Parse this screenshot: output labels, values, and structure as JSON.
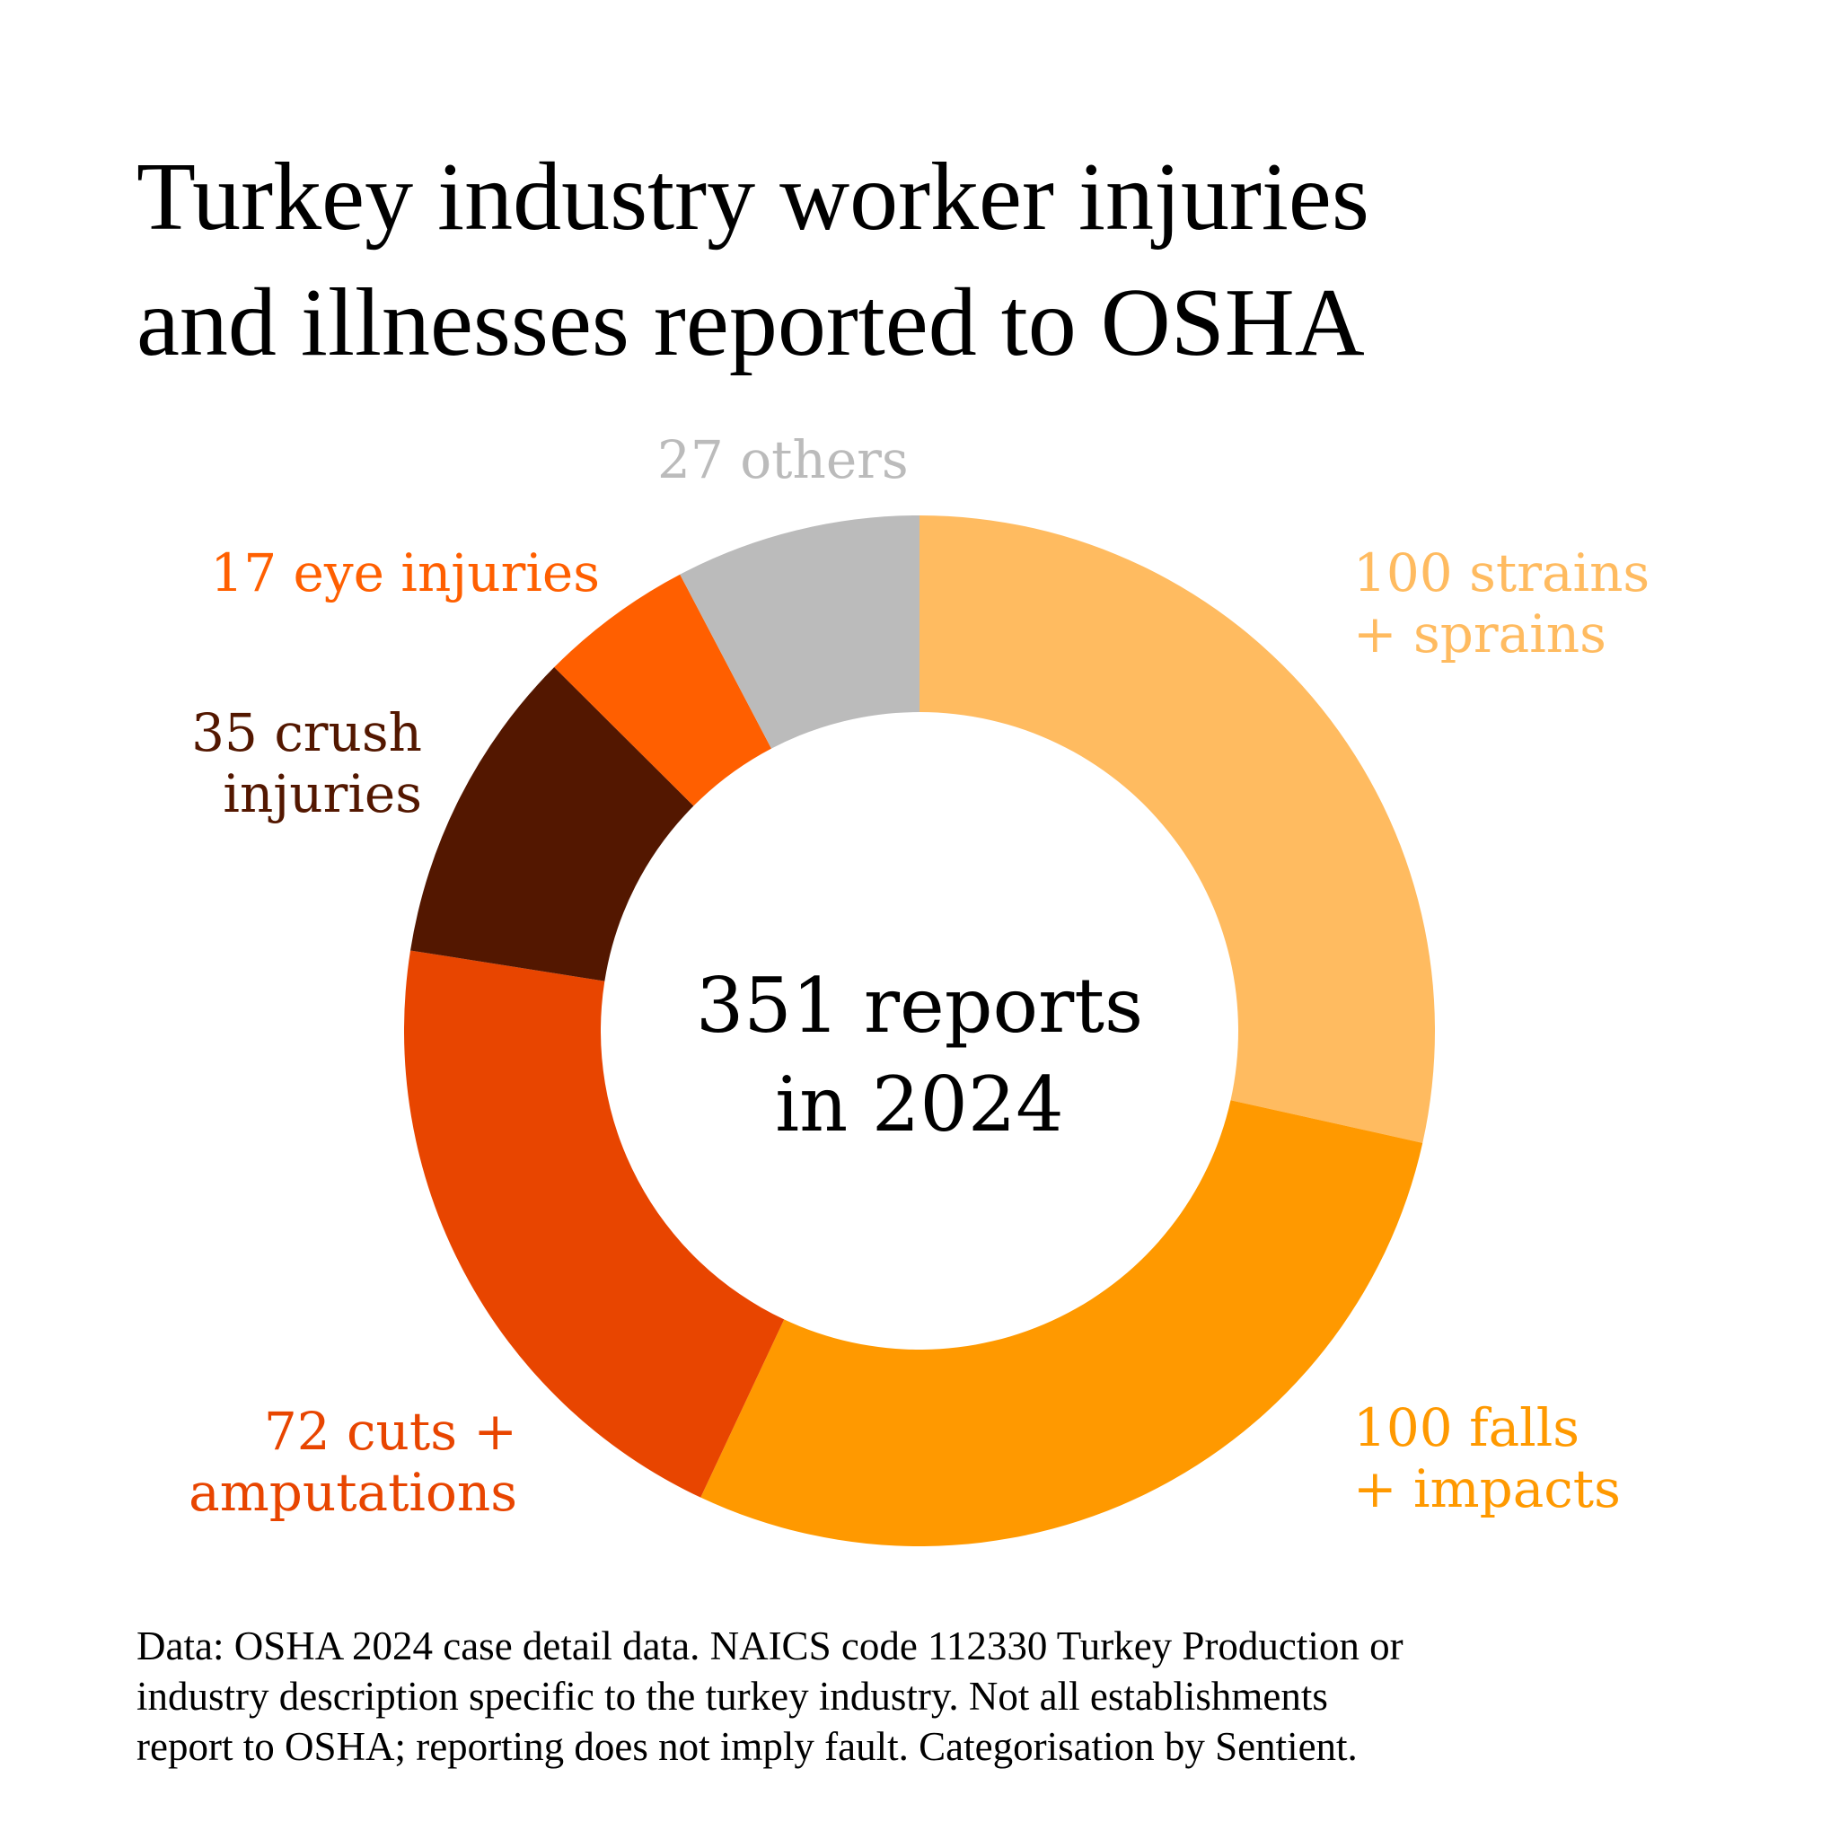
{
  "title": {
    "line1": "Turkey industry worker injuries",
    "line2": "and illnesses reported to OSHA"
  },
  "center_label": {
    "line1": "351 reports",
    "line2": "in 2024"
  },
  "labels": {
    "strains": {
      "line1": "100 strains",
      "line2": "+ sprains",
      "color": "#FFBB60"
    },
    "falls": {
      "line1": "100 falls",
      "line2": "+ impacts",
      "color": "#FF9900"
    },
    "cuts": {
      "line1": "72 cuts +",
      "line2": "amputations",
      "color": "#E84500"
    },
    "crush": {
      "line1": "35 crush",
      "line2": "injuries",
      "color": "#531700"
    },
    "eye": {
      "line1": "17 eye injuries",
      "color": "#FF5F00"
    },
    "others": {
      "line1": "27 others",
      "color": "#BBBBBB"
    }
  },
  "source": {
    "line1": "Data: OSHA 2024 case detail data. NAICS code 112330 Turkey Production or",
    "line2": "industry description specific to the turkey industry. Not all establishments",
    "line3": "report to OSHA; reporting does not imply fault. Categorisation by Sentient."
  },
  "chart_data": {
    "type": "pie",
    "subtype": "donut",
    "title": "Turkey industry worker injuries and illnesses reported to OSHA",
    "center_text": "351 reports in 2024",
    "total": 351,
    "start_angle": "12 o'clock, clockwise",
    "categories": [
      "strains + sprains",
      "falls + impacts",
      "cuts + amputations",
      "crush injuries",
      "eye injuries",
      "others"
    ],
    "values": [
      100,
      100,
      72,
      35,
      17,
      27
    ],
    "colors": [
      "#FFBB60",
      "#FF9900",
      "#E84500",
      "#531700",
      "#FF5F00",
      "#BBBBBB"
    ],
    "legend": "direct labels around donut",
    "source": "Data: OSHA 2024 case detail data. NAICS code 112330 Turkey Production or industry description specific to the turkey industry. Not all establishments report to OSHA; reporting does not imply fault. Categorisation by Sentient."
  }
}
